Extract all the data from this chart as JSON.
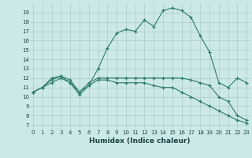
{
  "title": "",
  "xlabel": "Humidex (Indice chaleur)",
  "bg_color": "#cce8e8",
  "grid_color": "#aacccc",
  "line_color": "#2d7a6e",
  "x_ticks": [
    0,
    1,
    2,
    3,
    4,
    5,
    6,
    7,
    8,
    9,
    10,
    11,
    12,
    13,
    14,
    15,
    16,
    17,
    18,
    19,
    20,
    21,
    22,
    23
  ],
  "y_ticks": [
    7,
    8,
    9,
    10,
    11,
    12,
    13,
    14,
    15,
    16,
    17,
    18,
    19
  ],
  "ylim": [
    6.5,
    20.0
  ],
  "xlim": [
    -0.3,
    23.3
  ],
  "line1_y": [
    10.5,
    11.0,
    11.8,
    12.2,
    11.5,
    10.2,
    11.2,
    13.0,
    15.2,
    16.8,
    17.2,
    17.0,
    18.2,
    17.5,
    19.2,
    19.5,
    19.2,
    18.5,
    16.5,
    14.8,
    11.5,
    11.0,
    12.0,
    11.5
  ],
  "line2_y": [
    10.5,
    11.0,
    12.0,
    12.2,
    11.8,
    10.5,
    11.5,
    12.0,
    12.0,
    12.0,
    12.0,
    12.0,
    12.0,
    12.0,
    12.0,
    12.0,
    12.0,
    11.8,
    11.5,
    11.2,
    10.0,
    9.5,
    8.0,
    7.5
  ],
  "line3_y": [
    10.5,
    11.0,
    11.5,
    12.0,
    11.5,
    10.5,
    11.2,
    11.8,
    11.8,
    11.5,
    11.5,
    11.5,
    11.5,
    11.2,
    11.0,
    11.0,
    10.5,
    10.0,
    9.5,
    9.0,
    8.5,
    8.0,
    7.5,
    7.2
  ]
}
